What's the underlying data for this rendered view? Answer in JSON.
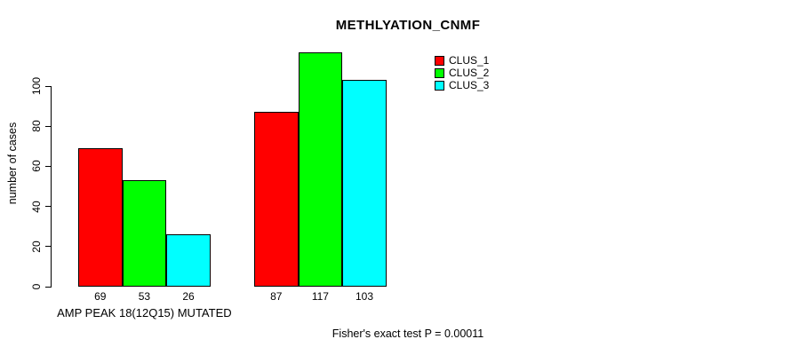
{
  "chart_data": {
    "type": "bar",
    "title": "METHLYATION_CNMF",
    "ylabel": "number of cases",
    "yticks": [
      0,
      20,
      40,
      60,
      80,
      100
    ],
    "ylim": [
      0,
      120
    ],
    "grid": false,
    "legend_position": "top-right",
    "categories": [
      "AMP PEAK 18(12Q15) MUTATED",
      ""
    ],
    "series": [
      {
        "name": "CLUS_1",
        "color": "#ff0000",
        "values": [
          69,
          87
        ]
      },
      {
        "name": "CLUS_2",
        "color": "#00ff00",
        "values": [
          53,
          117
        ]
      },
      {
        "name": "CLUS_3",
        "color": "#00ffff",
        "values": [
          26,
          103
        ]
      }
    ],
    "bar_value_labels": [
      [
        69,
        53,
        26
      ],
      [
        87,
        117,
        103
      ]
    ],
    "annotation": "Fisher's exact test P = 0.00011"
  }
}
